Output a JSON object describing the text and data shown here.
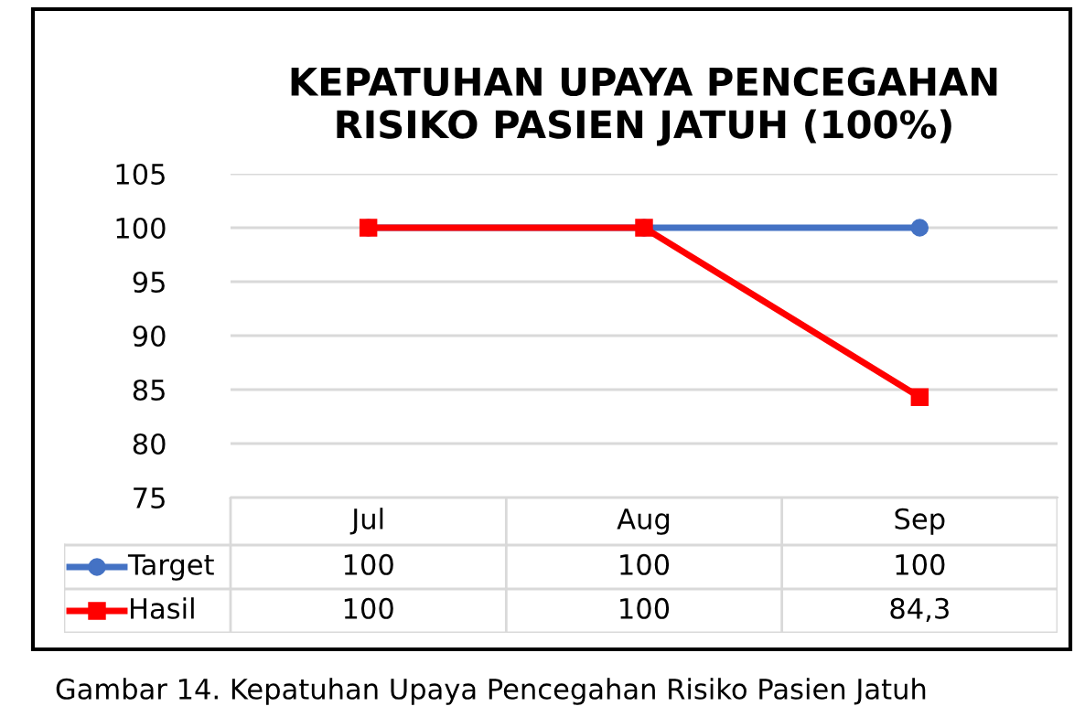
{
  "chart_data": {
    "type": "line",
    "title": "KEPATUHAN UPAYA PENCEGAHAN\nRISIKO PASIEN JATUH (100%)",
    "categories": [
      "Jul",
      "Aug",
      "Sep"
    ],
    "series": [
      {
        "name": "Target",
        "color": "#4472c4",
        "values": [
          100,
          100,
          100
        ],
        "marker": "circle",
        "value_labels": [
          "100",
          "100",
          "100"
        ]
      },
      {
        "name": "Hasil",
        "color": "#ff0000",
        "values": [
          100,
          100,
          84.3
        ],
        "marker": "square",
        "value_labels": [
          "100",
          "100",
          "84,3"
        ]
      }
    ],
    "ylim": [
      75,
      105
    ],
    "yticks": [
      75,
      80,
      85,
      90,
      95,
      100,
      105
    ],
    "grid": "y",
    "line_style": "solid",
    "legend": "bottom left",
    "annotations": [
      "Gambar 14. Kepatuhan Upaya Pencegahan Risiko Pasien Jatuh"
    ]
  }
}
